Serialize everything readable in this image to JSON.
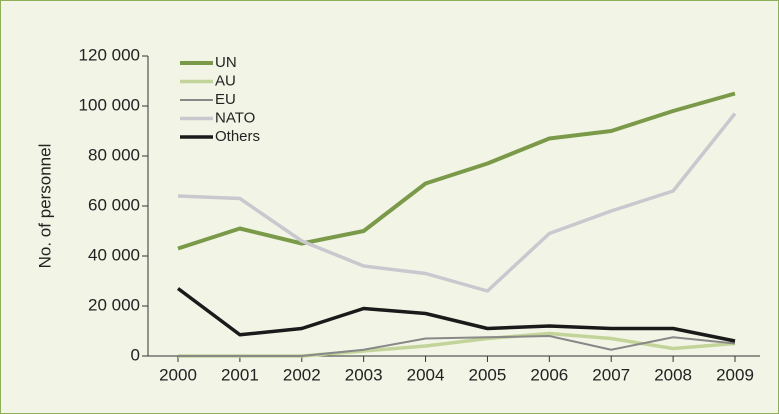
{
  "chart_data": {
    "type": "line",
    "y_label": "No. of personnel",
    "categories": [
      "2000",
      "2001",
      "2002",
      "2003",
      "2004",
      "2005",
      "2006",
      "2007",
      "2008",
      "2009"
    ],
    "series": [
      {
        "name": "UN",
        "color": "#7a9a4a",
        "values": [
          43000,
          51000,
          45000,
          50000,
          69000,
          77000,
          87000,
          90000,
          98000,
          105000
        ]
      },
      {
        "name": "AU",
        "color": "#c3d49a",
        "values": [
          0,
          0,
          0,
          2000,
          4000,
          7000,
          9000,
          7000,
          3000,
          5000
        ]
      },
      {
        "name": "EU",
        "color": "#888888",
        "values": [
          0,
          0,
          0,
          2500,
          7000,
          7500,
          8000,
          2500,
          7500,
          5000
        ]
      },
      {
        "name": "NATO",
        "color": "#c8c8ce",
        "values": [
          64000,
          63000,
          46000,
          36000,
          33000,
          26000,
          49000,
          58000,
          66000,
          97000
        ]
      },
      {
        "name": "Others",
        "color": "#1a1a1a",
        "values": [
          27000,
          8500,
          11000,
          19000,
          17000,
          11000,
          12000,
          11000,
          11000,
          6000
        ]
      }
    ],
    "ylim": [
      0,
      120000
    ],
    "yticks": [
      0,
      {
        "value": 20000,
        "label": "20 000"
      },
      {
        "value": 40000,
        "label": "40 000"
      },
      {
        "value": 60000,
        "label": "60 000"
      },
      {
        "value": 80000,
        "label": "80 000"
      },
      {
        "value": 100000,
        "label": "100 000"
      },
      {
        "value": 120000,
        "label": "120 000"
      }
    ],
    "legend": "top-left",
    "grid": false
  }
}
